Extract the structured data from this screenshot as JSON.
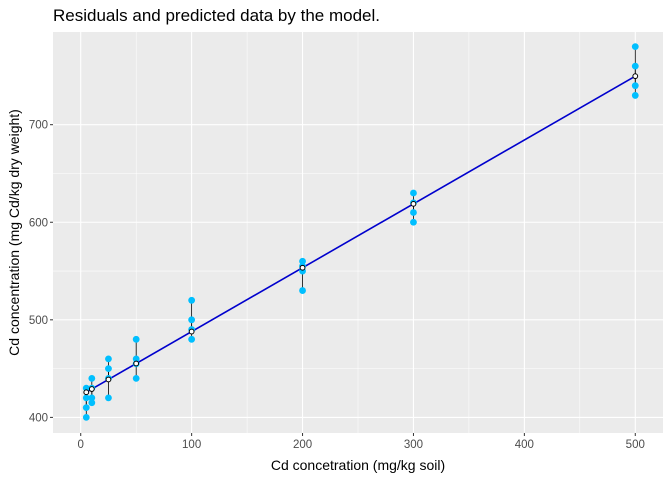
{
  "colors": {
    "panel": "#ebebeb",
    "grid_major": "#ffffff",
    "points": "#00bfff",
    "fit_line": "#0000cd",
    "residual": "#000000",
    "predicted_fill": "#ffffff"
  },
  "chart_data": {
    "type": "scatter",
    "title": "Residuals and predicted data by the model.",
    "xlabel": "Cd concetration (mg/kg soil)",
    "ylabel": "Cd concentration (mg Cd/kg dry weight)",
    "xlim": [
      -25,
      525
    ],
    "ylim": [
      384,
      795
    ],
    "x_ticks": [
      0,
      100,
      200,
      300,
      400,
      500
    ],
    "y_ticks": [
      400,
      500,
      600,
      700
    ],
    "grid": true,
    "legend": "none",
    "fit_line": {
      "intercept": 422.5,
      "slope": 0.6545,
      "x_range": [
        5,
        500
      ]
    },
    "series": [
      {
        "type": "observed",
        "points": [
          {
            "x": 5,
            "y": 400
          },
          {
            "x": 5,
            "y": 410
          },
          {
            "x": 5,
            "y": 420
          },
          {
            "x": 5,
            "y": 430
          },
          {
            "x": 10,
            "y": 415
          },
          {
            "x": 10,
            "y": 420
          },
          {
            "x": 10,
            "y": 430
          },
          {
            "x": 10,
            "y": 440
          },
          {
            "x": 25,
            "y": 420
          },
          {
            "x": 25,
            "y": 440
          },
          {
            "x": 25,
            "y": 450
          },
          {
            "x": 25,
            "y": 460
          },
          {
            "x": 50,
            "y": 440
          },
          {
            "x": 50,
            "y": 455
          },
          {
            "x": 50,
            "y": 460
          },
          {
            "x": 50,
            "y": 480
          },
          {
            "x": 100,
            "y": 480
          },
          {
            "x": 100,
            "y": 490
          },
          {
            "x": 100,
            "y": 500
          },
          {
            "x": 100,
            "y": 520
          },
          {
            "x": 200,
            "y": 530
          },
          {
            "x": 200,
            "y": 550
          },
          {
            "x": 200,
            "y": 555
          },
          {
            "x": 200,
            "y": 560
          },
          {
            "x": 300,
            "y": 600
          },
          {
            "x": 300,
            "y": 610
          },
          {
            "x": 300,
            "y": 620
          },
          {
            "x": 300,
            "y": 630
          },
          {
            "x": 500,
            "y": 730
          },
          {
            "x": 500,
            "y": 740
          },
          {
            "x": 500,
            "y": 760
          },
          {
            "x": 500,
            "y": 780
          }
        ]
      },
      {
        "type": "predicted",
        "x": [
          5,
          10,
          25,
          50,
          100,
          200,
          300,
          500
        ]
      }
    ]
  }
}
